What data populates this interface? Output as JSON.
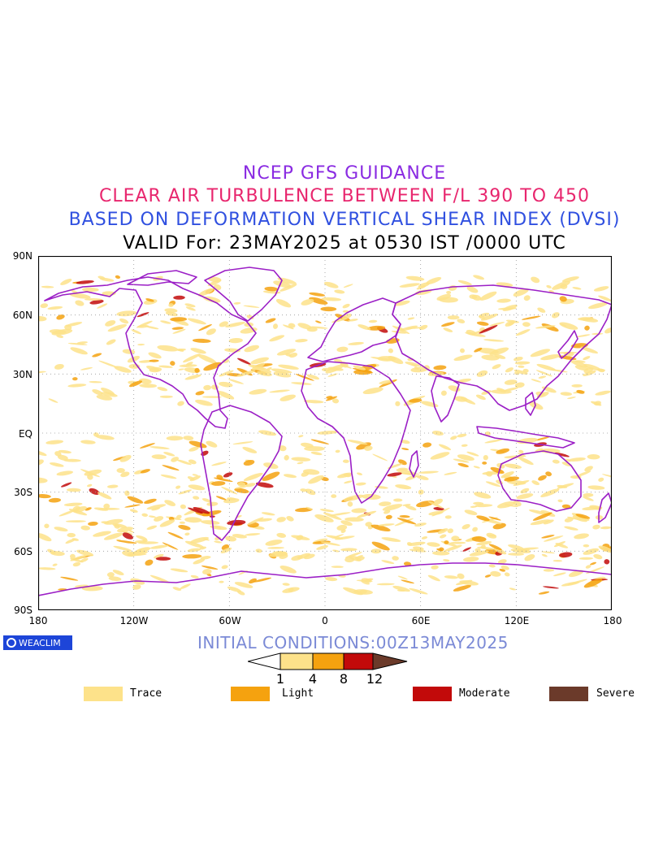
{
  "titles": {
    "line1": "NCEP GFS GUIDANCE",
    "line2": "CLEAR AIR TURBULENCE BETWEEN F/L 390 TO 450",
    "line3": "BASED ON DEFORMATION VERTICAL SHEAR INDEX (DVSI)",
    "line4": "VALID For: 23MAY2025 at 0530 IST /0000 UTC"
  },
  "colors": {
    "line1": "#8a2be2",
    "line2": "#e8266e",
    "line3": "#3050e0",
    "line4": "#000000",
    "coast": "#9b1fc6",
    "trace": "#fde28a",
    "light": "#f5a20f",
    "moderate": "#c20a0a",
    "severe": "#6b3a2a"
  },
  "axes": {
    "lat_labels": [
      "90N",
      "60N",
      "30N",
      "EQ",
      "30S",
      "60S",
      "90S"
    ],
    "lon_labels": [
      "180",
      "120W",
      "60W",
      "0",
      "60E",
      "120E",
      "180"
    ]
  },
  "brand": {
    "label": "WEACLIM"
  },
  "initial_conditions": "INITIAL CONDITIONS:00Z13MAY2025",
  "colorbar": {
    "ticks": [
      "1",
      "4",
      "8",
      "12"
    ]
  },
  "legend": [
    {
      "label": "Trace",
      "color": "#fde28a"
    },
    {
      "label": "Light",
      "color": "#f5a20f"
    },
    {
      "label": "Moderate",
      "color": "#c20a0a"
    },
    {
      "label": "Severe",
      "color": "#6b3a2a"
    }
  ]
}
